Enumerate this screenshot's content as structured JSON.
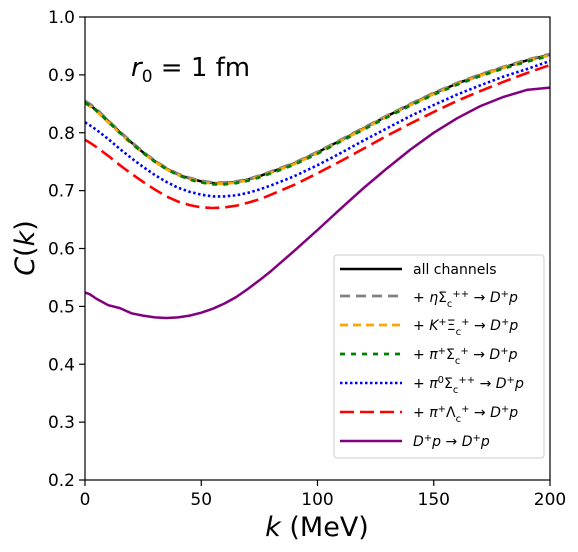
{
  "chart_data": {
    "type": "line",
    "xlabel": "k (MeV)",
    "ylabel": "C(k)",
    "annotation": "r0 = 1 fm",
    "xlim": [
      0,
      200
    ],
    "ylim": [
      0.2,
      1.0
    ],
    "xticks": [
      "0",
      "50",
      "100",
      "150",
      "200"
    ],
    "yticks": [
      "0.2",
      "0.3",
      "0.4",
      "0.5",
      "0.6",
      "0.7",
      "0.8",
      "0.9",
      "1.0"
    ],
    "legend_position": "lower-right",
    "x": [
      0,
      2,
      5,
      10,
      15,
      20,
      25,
      30,
      35,
      40,
      45,
      50,
      55,
      60,
      65,
      70,
      75,
      80,
      90,
      100,
      110,
      120,
      130,
      140,
      150,
      160,
      170,
      180,
      190,
      200
    ],
    "series": [
      {
        "name": "all channels",
        "color": "#000000",
        "dash": "solid",
        "values": [
          0.853,
          0.848,
          0.839,
          0.82,
          0.801,
          0.783,
          0.766,
          0.751,
          0.738,
          0.728,
          0.721,
          0.716,
          0.713,
          0.713,
          0.715,
          0.719,
          0.725,
          0.732,
          0.747,
          0.766,
          0.787,
          0.808,
          0.829,
          0.849,
          0.868,
          0.885,
          0.9,
          0.913,
          0.925,
          0.935
        ]
      },
      {
        "name": "+ ηΣc++ → D+p",
        "color": "#808080",
        "dash": "gray",
        "values": [
          0.855,
          0.85,
          0.841,
          0.821,
          0.802,
          0.784,
          0.767,
          0.752,
          0.739,
          0.729,
          0.722,
          0.717,
          0.714,
          0.714,
          0.716,
          0.72,
          0.726,
          0.733,
          0.748,
          0.767,
          0.788,
          0.809,
          0.83,
          0.85,
          0.869,
          0.886,
          0.901,
          0.914,
          0.926,
          0.936
        ]
      },
      {
        "name": "+ K+Ξc+ → D+p",
        "color": "#FFA500",
        "dash": "orange",
        "values": [
          0.851,
          0.846,
          0.837,
          0.818,
          0.799,
          0.781,
          0.765,
          0.75,
          0.737,
          0.727,
          0.72,
          0.715,
          0.712,
          0.712,
          0.714,
          0.718,
          0.724,
          0.731,
          0.746,
          0.765,
          0.786,
          0.807,
          0.828,
          0.848,
          0.867,
          0.884,
          0.899,
          0.912,
          0.924,
          0.934
        ]
      },
      {
        "name": "+ π+Σc+ → D+p",
        "color": "#008000",
        "dash": "green",
        "values": [
          0.852,
          0.847,
          0.838,
          0.819,
          0.8,
          0.782,
          0.765,
          0.75,
          0.737,
          0.727,
          0.719,
          0.714,
          0.711,
          0.711,
          0.713,
          0.717,
          0.723,
          0.73,
          0.745,
          0.764,
          0.785,
          0.806,
          0.827,
          0.847,
          0.866,
          0.883,
          0.898,
          0.911,
          0.923,
          0.933
        ]
      },
      {
        "name": "+ π0Σc++ → D+p",
        "color": "#0000FF",
        "dash": "dotted",
        "values": [
          0.818,
          0.813,
          0.805,
          0.789,
          0.772,
          0.756,
          0.741,
          0.727,
          0.715,
          0.705,
          0.698,
          0.693,
          0.69,
          0.69,
          0.692,
          0.696,
          0.702,
          0.709,
          0.725,
          0.744,
          0.765,
          0.787,
          0.808,
          0.829,
          0.848,
          0.866,
          0.882,
          0.897,
          0.91,
          0.924
        ]
      },
      {
        "name": "+ π+Λc+ → D+p",
        "color": "#FF0000",
        "dash": "dashed",
        "values": [
          0.788,
          0.783,
          0.775,
          0.76,
          0.744,
          0.729,
          0.715,
          0.702,
          0.69,
          0.681,
          0.675,
          0.671,
          0.67,
          0.671,
          0.674,
          0.679,
          0.685,
          0.693,
          0.71,
          0.73,
          0.751,
          0.773,
          0.795,
          0.816,
          0.836,
          0.855,
          0.872,
          0.888,
          0.903,
          0.917
        ]
      },
      {
        "name": "D+p → D+p",
        "color": "#800080",
        "dash": "solid",
        "values": [
          0.524,
          0.521,
          0.513,
          0.502,
          0.497,
          0.488,
          0.484,
          0.481,
          0.48,
          0.481,
          0.484,
          0.489,
          0.496,
          0.505,
          0.516,
          0.53,
          0.545,
          0.561,
          0.596,
          0.632,
          0.669,
          0.705,
          0.739,
          0.771,
          0.8,
          0.825,
          0.846,
          0.862,
          0.874,
          0.878
        ]
      }
    ]
  }
}
